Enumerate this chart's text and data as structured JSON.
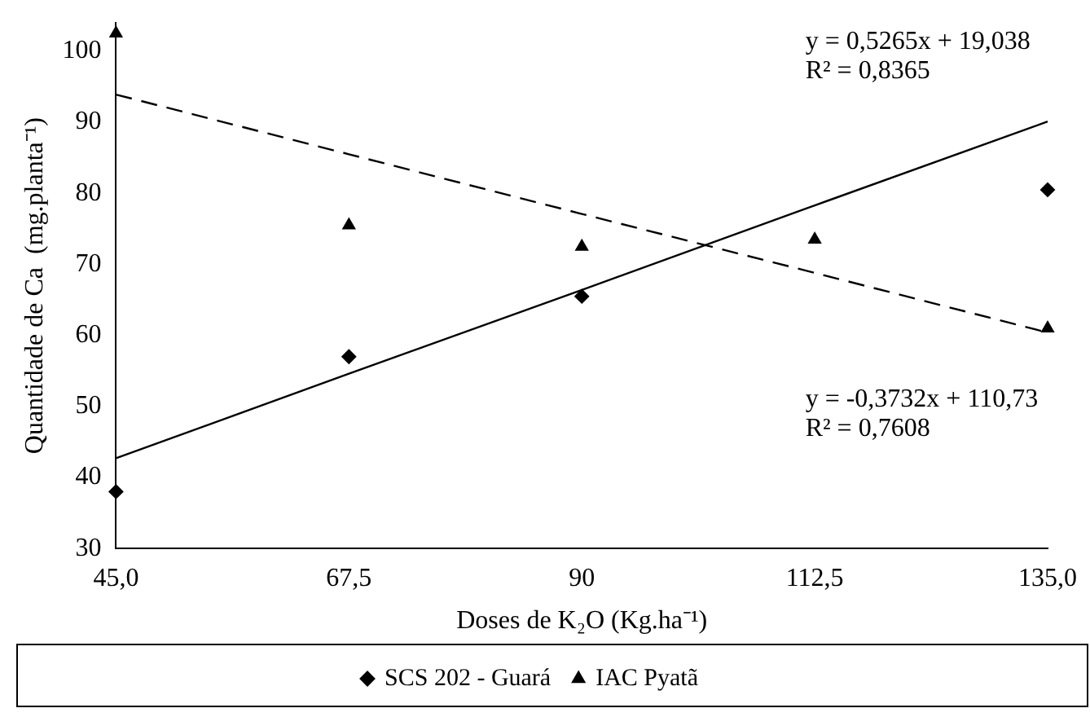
{
  "chart_data": {
    "type": "scatter",
    "xlabel": "Doses de K₂O (Kg.ha⁻¹)",
    "ylabel": "Quantidade de Ca  (mg.planta⁻¹)",
    "x": [
      45,
      67.5,
      90,
      112.5,
      135
    ],
    "series": [
      {
        "name": "SCS 202 - Guará",
        "color": "#000000",
        "marker": "diamond",
        "values": [
          38,
          57,
          65.5,
          null,
          80.5
        ]
      },
      {
        "name": "IAC Pyatã",
        "color": "#000000",
        "marker": "triangle",
        "values": [
          102.5,
          75.5,
          72.5,
          73.5,
          61
        ]
      },
      {
        "type": "line",
        "color": "#000000",
        "marker": "none",
        "line_style": "solid",
        "values": [
          42.7,
          54.6,
          66.4,
          78.3,
          90.1
        ]
      },
      {
        "type": "line",
        "color": "#000000",
        "marker": "none",
        "line_style": "dashed",
        "values": [
          93.9,
          85.5,
          77.1,
          68.8,
          60.4
        ]
      }
    ],
    "xlim": [
      45,
      135
    ],
    "xticks": [
      {
        "value": 45,
        "label": "45,0"
      },
      {
        "value": 67.5,
        "label": "67,5"
      },
      90,
      {
        "value": 112.5,
        "label": "112,5"
      },
      {
        "value": 135,
        "label": "135,0"
      }
    ],
    "ylim": [
      30,
      104
    ],
    "yticks": [
      30,
      40,
      50,
      60,
      70,
      80,
      90,
      100
    ],
    "grid": false,
    "legend": "bottom",
    "annotations": [
      "y = 0,5265x + 19,038\nR² = 0,8365",
      "y = -0,3732x + 110,73\nR² = 0,7608"
    ]
  }
}
